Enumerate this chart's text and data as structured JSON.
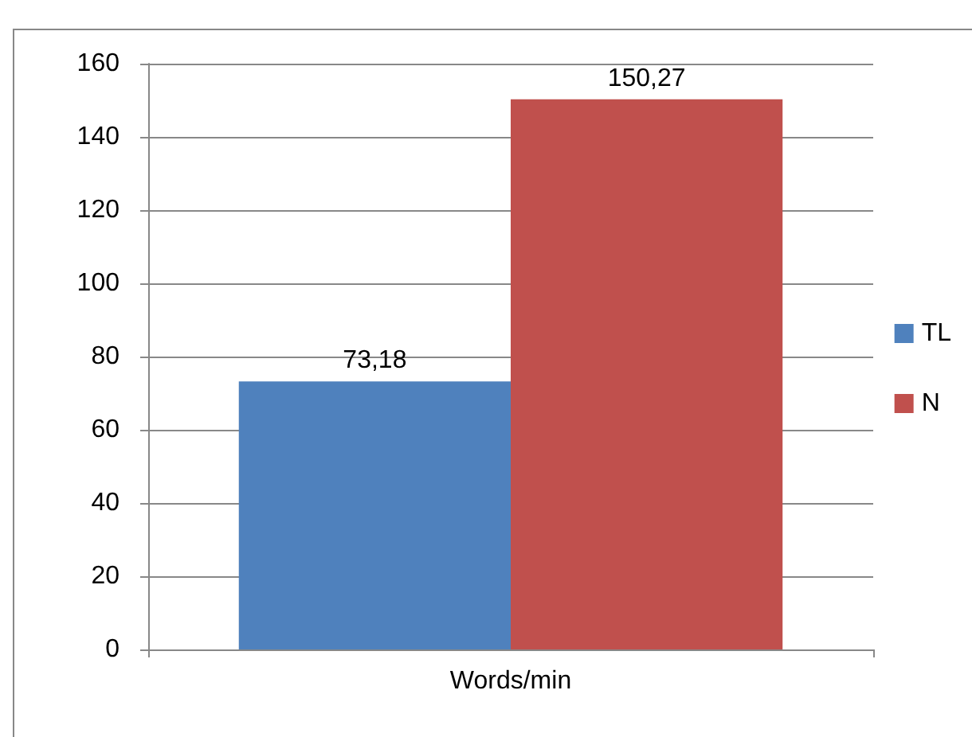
{
  "chart_data": {
    "type": "bar",
    "categories": [
      "Words/min"
    ],
    "series": [
      {
        "name": "TL",
        "color": "#4f81bd",
        "values": [
          73.18
        ],
        "value_labels": [
          "73,18"
        ]
      },
      {
        "name": "N",
        "color": "#c0504d",
        "values": [
          150.27
        ],
        "value_labels": [
          "150,27"
        ]
      }
    ],
    "ylim": [
      0,
      160
    ],
    "yticks": [
      0,
      20,
      40,
      60,
      80,
      100,
      120,
      140,
      160
    ],
    "grid": "y",
    "legend": "right"
  }
}
